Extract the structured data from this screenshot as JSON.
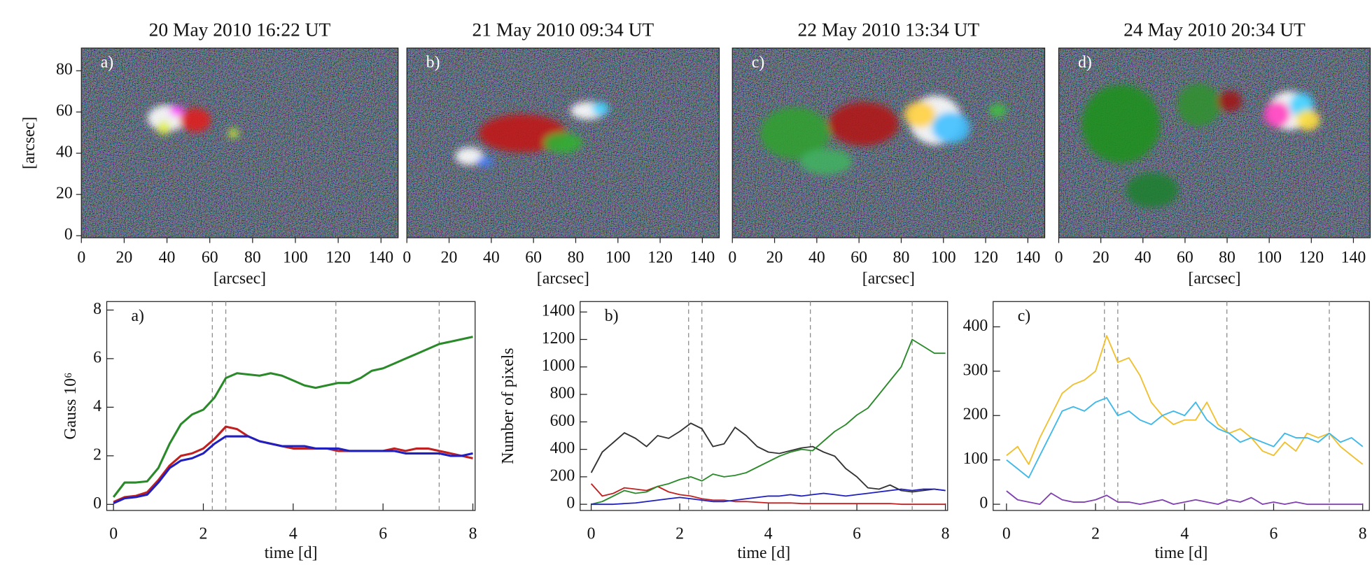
{
  "chart_data": [
    {
      "type": "image",
      "title": "20 May 2010 16:22 UT",
      "panel_label": "a)",
      "xlabel": "[arcsec]",
      "ylabel": "[arcsec]",
      "xlim": [
        0,
        148
      ],
      "ylim": [
        -1,
        91
      ],
      "xticks": [
        0,
        20,
        40,
        60,
        80,
        100,
        120,
        140
      ],
      "yticks": [
        0,
        20,
        40,
        60,
        80
      ]
    },
    {
      "type": "image",
      "title": "21 May 2010 09:34 UT",
      "panel_label": "b)",
      "xlabel": "[arcsec]",
      "xlim": [
        0,
        148
      ],
      "ylim": [
        -1,
        91
      ],
      "xticks": [
        0,
        20,
        40,
        60,
        80,
        100,
        120,
        140
      ]
    },
    {
      "type": "image",
      "title": "22 May 2010 13:34 UT",
      "panel_label": "c)",
      "xlabel": "[arcsec]",
      "xlim": [
        0,
        148
      ],
      "ylim": [
        -1,
        91
      ],
      "xticks": [
        0,
        20,
        40,
        60,
        80,
        100,
        120,
        140
      ]
    },
    {
      "type": "image",
      "title": "24 May 2010 20:34 UT",
      "panel_label": "d)",
      "xlabel": "[arcsec]",
      "xlim": [
        0,
        148
      ],
      "ylim": [
        -1,
        91
      ],
      "xticks": [
        0,
        20,
        40,
        60,
        80,
        100,
        120,
        140
      ]
    },
    {
      "type": "line",
      "panel_label": "a)",
      "xlabel": "time [d]",
      "ylabel": "Gauss 10⁶",
      "xlim": [
        -0.15,
        8.05
      ],
      "ylim": [
        -0.25,
        8.35
      ],
      "xticks": [
        0,
        2,
        4,
        6,
        8
      ],
      "yticks": [
        0,
        2,
        4,
        6,
        8
      ],
      "markers": [
        2.2,
        2.5,
        4.95,
        7.25
      ],
      "x": [
        0,
        0.25,
        0.5,
        0.75,
        1,
        1.25,
        1.5,
        1.75,
        2,
        2.25,
        2.5,
        2.75,
        3,
        3.25,
        3.5,
        3.75,
        4,
        4.25,
        4.5,
        4.75,
        5,
        5.25,
        5.5,
        5.75,
        6,
        6.25,
        6.5,
        6.75,
        7,
        7.25,
        7.5,
        7.75,
        8
      ],
      "series": [
        {
          "color": "#2a8a2a",
          "values": [
            0.3,
            0.9,
            0.9,
            0.95,
            1.5,
            2.5,
            3.3,
            3.7,
            3.9,
            4.4,
            5.2,
            5.4,
            5.35,
            5.3,
            5.4,
            5.3,
            5.1,
            4.9,
            4.8,
            4.9,
            5.0,
            5.0,
            5.2,
            5.5,
            5.6,
            5.8,
            6.0,
            6.2,
            6.4,
            6.6,
            6.7,
            6.8,
            6.9
          ]
        },
        {
          "color": "#c02020",
          "values": [
            0.1,
            0.3,
            0.35,
            0.5,
            1.0,
            1.6,
            2.0,
            2.1,
            2.3,
            2.7,
            3.2,
            3.1,
            2.8,
            2.6,
            2.5,
            2.4,
            2.3,
            2.3,
            2.3,
            2.3,
            2.2,
            2.2,
            2.2,
            2.2,
            2.2,
            2.3,
            2.2,
            2.3,
            2.3,
            2.2,
            2.1,
            2.0,
            1.9
          ]
        },
        {
          "color": "#2020c0",
          "values": [
            0.05,
            0.25,
            0.3,
            0.4,
            0.9,
            1.5,
            1.8,
            1.9,
            2.1,
            2.5,
            2.8,
            2.8,
            2.8,
            2.6,
            2.5,
            2.4,
            2.4,
            2.4,
            2.3,
            2.3,
            2.3,
            2.2,
            2.2,
            2.2,
            2.2,
            2.2,
            2.1,
            2.1,
            2.1,
            2.1,
            2.0,
            2.0,
            2.1
          ]
        }
      ]
    },
    {
      "type": "line",
      "panel_label": "b)",
      "xlabel": "time [d]",
      "ylabel": "Number of pixels",
      "xlim": [
        -0.25,
        8.05
      ],
      "ylim": [
        -45,
        1476
      ],
      "xticks": [
        0,
        2,
        4,
        6,
        8
      ],
      "yticks": [
        0,
        200,
        400,
        600,
        800,
        1000,
        1200,
        1400
      ],
      "markers": [
        2.2,
        2.5,
        4.95,
        7.25
      ],
      "x": [
        0,
        0.25,
        0.5,
        0.75,
        1,
        1.25,
        1.5,
        1.75,
        2,
        2.25,
        2.5,
        2.75,
        3,
        3.25,
        3.5,
        3.75,
        4,
        4.25,
        4.5,
        4.75,
        5,
        5.25,
        5.5,
        5.75,
        6,
        6.25,
        6.5,
        6.75,
        7,
        7.25,
        7.5,
        7.75,
        8
      ],
      "series": [
        {
          "color": "#333333",
          "values": [
            230,
            380,
            450,
            520,
            480,
            420,
            500,
            480,
            530,
            590,
            550,
            420,
            440,
            560,
            500,
            420,
            380,
            370,
            390,
            410,
            420,
            380,
            350,
            260,
            200,
            120,
            110,
            140,
            100,
            90,
            100,
            110,
            100
          ]
        },
        {
          "color": "#c02020",
          "values": [
            150,
            60,
            80,
            120,
            110,
            100,
            130,
            90,
            70,
            60,
            40,
            30,
            30,
            20,
            20,
            15,
            10,
            10,
            10,
            5,
            5,
            5,
            5,
            5,
            5,
            5,
            5,
            5,
            0,
            0,
            0,
            0,
            0
          ]
        },
        {
          "color": "#2a8a2a",
          "values": [
            0,
            20,
            60,
            100,
            80,
            90,
            130,
            150,
            180,
            200,
            170,
            220,
            200,
            210,
            230,
            270,
            310,
            350,
            380,
            400,
            390,
            460,
            530,
            580,
            650,
            700,
            800,
            900,
            1000,
            1200,
            1150,
            1100,
            1100
          ]
        },
        {
          "color": "#2020c0",
          "values": [
            0,
            0,
            0,
            5,
            10,
            20,
            30,
            40,
            50,
            40,
            30,
            20,
            20,
            30,
            40,
            50,
            60,
            60,
            70,
            60,
            70,
            80,
            70,
            60,
            70,
            80,
            90,
            100,
            110,
            100,
            110,
            110,
            100
          ]
        }
      ]
    },
    {
      "type": "line",
      "panel_label": "c)",
      "xlabel": "time [d]",
      "xlim": [
        -0.3,
        8.15
      ],
      "ylim": [
        -14,
        457
      ],
      "xticks": [
        0,
        2,
        4,
        6,
        8
      ],
      "yticks": [
        0,
        100,
        200,
        300,
        400
      ],
      "markers": [
        2.2,
        2.5,
        4.95,
        7.25
      ],
      "x": [
        0,
        0.25,
        0.5,
        0.75,
        1,
        1.25,
        1.5,
        1.75,
        2,
        2.25,
        2.5,
        2.75,
        3,
        3.25,
        3.5,
        3.75,
        4,
        4.25,
        4.5,
        4.75,
        5,
        5.25,
        5.5,
        5.75,
        6,
        6.25,
        6.5,
        6.75,
        7,
        7.25,
        7.5,
        7.75,
        8
      ],
      "series": [
        {
          "color": "#f0c030",
          "values": [
            110,
            130,
            90,
            150,
            200,
            250,
            270,
            280,
            300,
            380,
            320,
            330,
            290,
            230,
            200,
            180,
            190,
            190,
            230,
            180,
            160,
            170,
            150,
            120,
            110,
            140,
            120,
            160,
            150,
            160,
            130,
            110,
            90
          ]
        },
        {
          "color": "#40b8e8",
          "values": [
            100,
            80,
            60,
            110,
            160,
            210,
            220,
            210,
            230,
            240,
            200,
            210,
            190,
            180,
            200,
            210,
            200,
            230,
            190,
            170,
            160,
            140,
            150,
            140,
            130,
            160,
            150,
            150,
            140,
            160,
            140,
            150,
            130
          ]
        },
        {
          "color": "#8040b0",
          "values": [
            30,
            10,
            5,
            0,
            25,
            10,
            5,
            5,
            10,
            20,
            5,
            5,
            0,
            5,
            10,
            0,
            5,
            10,
            5,
            0,
            10,
            5,
            15,
            0,
            5,
            0,
            5,
            0,
            0,
            0,
            0,
            0,
            0
          ]
        }
      ]
    }
  ]
}
